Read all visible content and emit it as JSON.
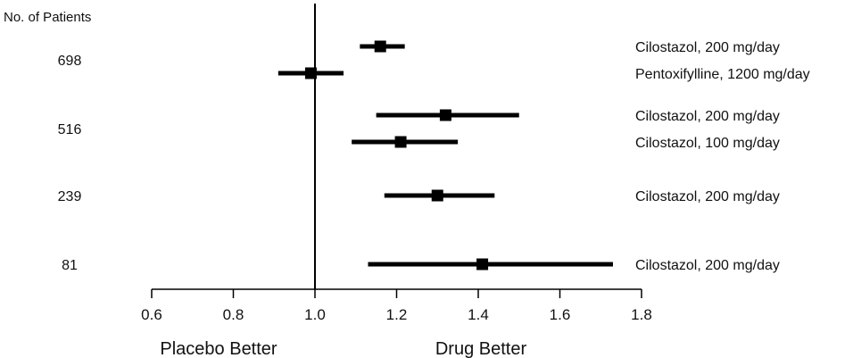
{
  "chart_data": {
    "type": "forest",
    "header": "No. of Patients",
    "xlim": [
      0.6,
      1.8
    ],
    "xticks": [
      "0.6",
      "0.8",
      "1.0",
      "1.2",
      "1.4",
      "1.6",
      "1.8"
    ],
    "reference_line": 1.0,
    "left_label": "Placebo Better",
    "right_label": "Drug Better",
    "marker_color": "#000000",
    "groups": [
      {
        "n": "698",
        "series": [
          {
            "label": "Cilostazol, 200 mg/day",
            "estimate": 1.16,
            "low": 1.11,
            "high": 1.22
          },
          {
            "label": "Pentoxifylline, 1200 mg/day",
            "estimate": 0.99,
            "low": 0.91,
            "high": 1.07
          }
        ]
      },
      {
        "n": "516",
        "series": [
          {
            "label": "Cilostazol, 200 mg/day",
            "estimate": 1.32,
            "low": 1.15,
            "high": 1.5
          },
          {
            "label": "Cilostazol, 100 mg/day",
            "estimate": 1.21,
            "low": 1.09,
            "high": 1.35
          }
        ]
      },
      {
        "n": "239",
        "series": [
          {
            "label": "Cilostazol, 200 mg/day",
            "estimate": 1.3,
            "low": 1.17,
            "high": 1.44
          }
        ]
      },
      {
        "n": "81",
        "series": [
          {
            "label": "Cilostazol, 200 mg/day",
            "estimate": 1.41,
            "low": 1.13,
            "high": 1.73
          }
        ]
      }
    ]
  }
}
